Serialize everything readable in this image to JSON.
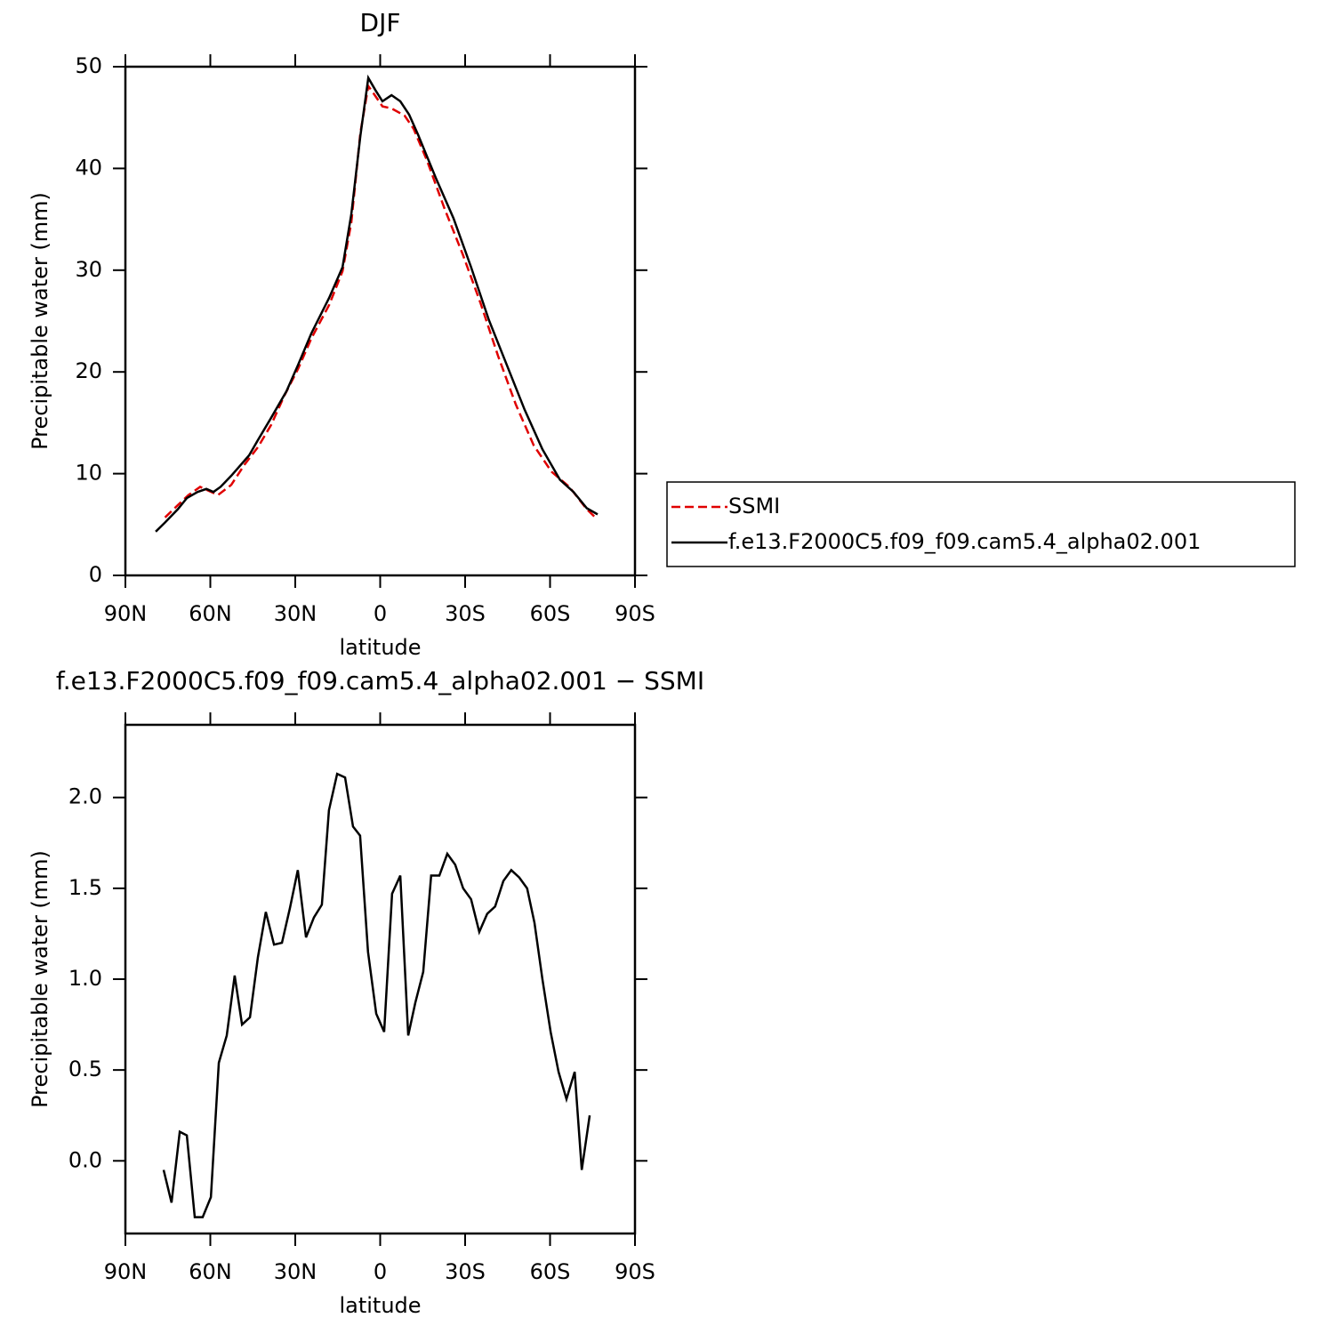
{
  "chart_data": [
    {
      "type": "line",
      "title": "DJF",
      "xlabel": "latitude",
      "ylabel": "Precipitable water (mm)",
      "xlim": [
        90,
        -90
      ],
      "xticks": [
        {
          "value": 90,
          "label": "90N"
        },
        {
          "value": 60,
          "label": "60N"
        },
        {
          "value": 30,
          "label": "30N"
        },
        0,
        {
          "value": -30,
          "label": "30S"
        },
        {
          "value": -60,
          "label": "60S"
        },
        {
          "value": -90,
          "label": "90S"
        }
      ],
      "ylim": [
        0,
        50
      ],
      "yticks": [
        0,
        10,
        20,
        30,
        40,
        50
      ],
      "legend": "right",
      "series": [
        {
          "name": "SSMI",
          "color": "#e00000",
          "dash": true,
          "x": [
            76,
            71.5,
            67.7,
            63.6,
            60.5,
            57.3,
            52.6,
            47.9,
            43.2,
            38.5,
            33.8,
            29,
            24.3,
            18,
            13.3,
            10.2,
            7,
            4.2,
            2.4,
            -0.8,
            -4,
            -8.6,
            -11.8,
            -16.5,
            -22.8,
            -29.1,
            -35.4,
            -41.6,
            -47.9,
            -54.2,
            -60.5,
            -66.8,
            -73,
            -75.6
          ],
          "values": [
            5.7,
            6.9,
            7.9,
            8.7,
            8.3,
            7.9,
            8.9,
            10.9,
            12.6,
            14.8,
            17.7,
            20.3,
            23.3,
            26.6,
            29.9,
            34.7,
            43.5,
            48.1,
            47.4,
            46.1,
            45.9,
            45.2,
            43.9,
            40.8,
            36,
            31.6,
            26.8,
            21.6,
            16.8,
            12.8,
            10.2,
            8.7,
            6.5,
            5.8
          ]
        },
        {
          "name": "f.e13.F2000C5.f09_f09.cam5.4_alpha02.001",
          "color": "#000000",
          "dash": false,
          "x": [
            79.3,
            76,
            71.5,
            68.3,
            64.5,
            61.4,
            58.9,
            56.4,
            52.6,
            46.3,
            43.2,
            38.5,
            33.1,
            29,
            24.3,
            18,
            13.3,
            10.2,
            7,
            4.2,
            1.7,
            -0.8,
            -4,
            -7.1,
            -10.2,
            -13.4,
            -19.6,
            -25.9,
            -32.1,
            -38.4,
            -44.7,
            -51,
            -57.3,
            -63.5,
            -68.3,
            -73,
            -76.8
          ],
          "values": [
            4.3,
            5.2,
            6.5,
            7.6,
            8.2,
            8.5,
            8.2,
            8.7,
            9.8,
            11.8,
            13.3,
            15.5,
            18.1,
            20.7,
            23.8,
            27.3,
            30.3,
            35.5,
            43.2,
            48.9,
            47.7,
            46.6,
            47.2,
            46.6,
            45.3,
            43.3,
            39.1,
            35.1,
            30.3,
            25.1,
            20.7,
            16.3,
            12.4,
            9.4,
            8.2,
            6.6,
            6.0
          ]
        }
      ]
    },
    {
      "type": "line",
      "title": "f.e13.F2000C5.f09_f09.cam5.4_alpha02.001 − SSMI",
      "xlabel": "latitude",
      "ylabel": "Precipitable water (mm)",
      "xlim": [
        90,
        -90
      ],
      "xticks": [
        {
          "value": 90,
          "label": "90N"
        },
        {
          "value": 60,
          "label": "60N"
        },
        {
          "value": 30,
          "label": "30N"
        },
        0,
        {
          "value": -30,
          "label": "30S"
        },
        {
          "value": -60,
          "label": "60S"
        },
        {
          "value": -90,
          "label": "90S"
        }
      ],
      "ylim": [
        -0.4,
        2.4
      ],
      "yticks": [
        {
          "value": 0,
          "label": "0.0"
        },
        0.5,
        {
          "value": 1,
          "label": "1.0"
        },
        1.5,
        {
          "value": 2,
          "label": "2.0"
        }
      ],
      "series": [
        {
          "color": "#000000",
          "dash": false,
          "x": [
            76.5,
            73.7,
            70.8,
            68.3,
            65.5,
            62.7,
            59.8,
            57,
            54.2,
            51.4,
            48.8,
            46,
            43.2,
            40.4,
            37.5,
            34.7,
            31.9,
            29.1,
            26.2,
            23.4,
            20.6,
            18.1,
            15.2,
            12.4,
            9.6,
            7.1,
            4.3,
            1.4,
            -1.4,
            -4.2,
            -7.1,
            -9.9,
            -12.4,
            -15.2,
            -18,
            -20.9,
            -23.7,
            -26.5,
            -29.3,
            -32.1,
            -35,
            -37.8,
            -40.6,
            -43.5,
            -46.3,
            -49.1,
            -51.9,
            -54.5,
            -57.3,
            -60.2,
            -63,
            -65.8,
            -68.7,
            -71.2,
            -74
          ],
          "values": [
            -0.05,
            -0.23,
            0.16,
            0.14,
            -0.31,
            -0.31,
            -0.2,
            0.54,
            0.69,
            1.02,
            0.75,
            0.79,
            1.12,
            1.37,
            1.19,
            1.2,
            1.39,
            1.6,
            1.23,
            1.34,
            1.41,
            1.93,
            2.13,
            2.11,
            1.84,
            1.79,
            1.15,
            0.81,
            0.71,
            1.47,
            1.57,
            0.69,
            0.87,
            1.04,
            1.57,
            1.57,
            1.69,
            1.63,
            1.5,
            1.44,
            1.26,
            1.36,
            1.4,
            1.54,
            1.6,
            1.56,
            1.5,
            1.31,
            1.0,
            0.71,
            0.49,
            0.34,
            0.49,
            -0.05,
            0.25
          ]
        }
      ]
    }
  ]
}
